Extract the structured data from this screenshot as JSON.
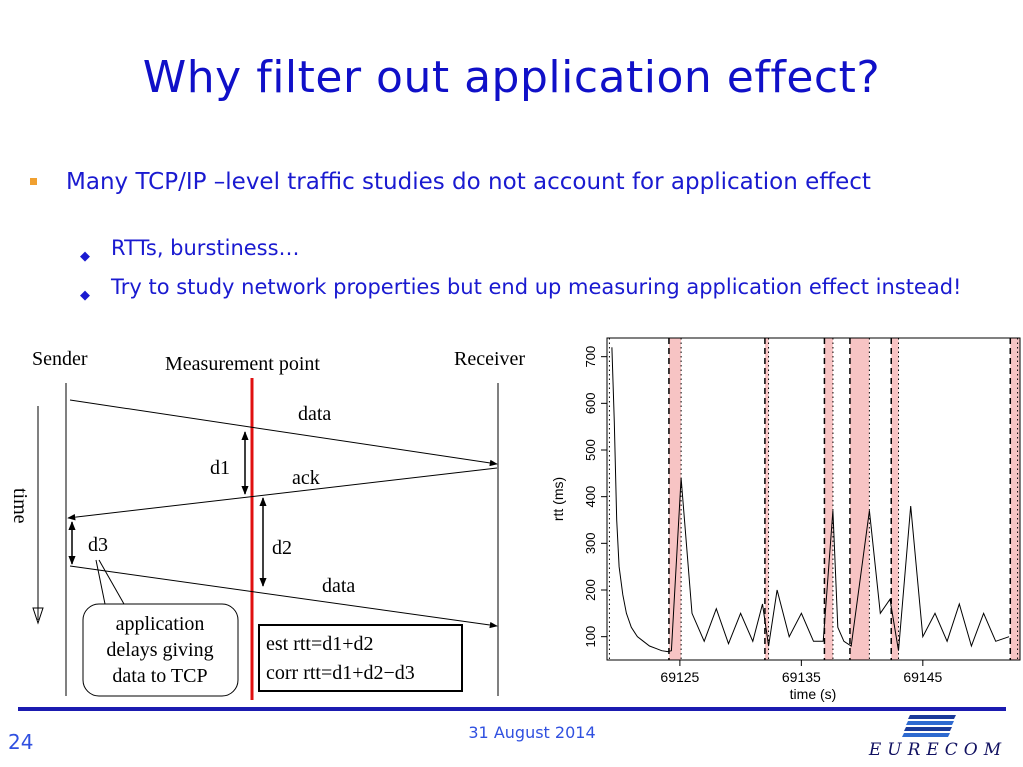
{
  "slide": {
    "title": "Why filter out application effect?",
    "bullets": [
      {
        "text": "Many TCP/IP –level traffic studies do not account for application effect",
        "subbullets": [
          "RTTs, burstiness…",
          "Try to study network properties but end up measuring application effect instead!"
        ]
      }
    ]
  },
  "diagram": {
    "sender": "Sender",
    "measurement_point": "Measurement point",
    "receiver": "Receiver",
    "time": "time",
    "data1": "data",
    "ack": "ack",
    "data2": "data",
    "d1": "d1",
    "d2": "d2",
    "d3": "d3",
    "callout": [
      "application",
      "delays giving",
      "data to TCP"
    ],
    "formula1": "est rtt=d1+d2",
    "formula2": "corr rtt=d1+d2−d3"
  },
  "chart_data": {
    "type": "line",
    "xlabel": "time (s)",
    "ylabel": "rtt (ms)",
    "x_ticks": [
      69125,
      69135,
      69145
    ],
    "y_ticks": [
      100,
      200,
      300,
      400,
      500,
      600,
      700
    ],
    "xlim": [
      69119,
      69153
    ],
    "ylim": [
      50,
      740
    ],
    "shaded_intervals": [
      [
        69124.1,
        69125.1
      ],
      [
        69132.0,
        69132.3
      ],
      [
        69136.9,
        69137.6
      ],
      [
        69139.0,
        69140.6
      ],
      [
        69142.4,
        69143.0
      ],
      [
        69152.2,
        69153.0
      ]
    ],
    "dashed_lines": [
      69124.1,
      69132.0,
      69136.9,
      69139.0,
      69142.4,
      69152.2
    ],
    "dotted_lines": [
      69119.2,
      69125.1,
      69132.3,
      69137.6,
      69140.6,
      69143.0,
      69152.8
    ],
    "series": [
      {
        "x": [
          69119.4,
          69119.6,
          69119.8,
          69120.0,
          69120.3,
          69120.6,
          69121.0,
          69121.5,
          69122.0,
          69122.5,
          69123.0,
          69123.5,
          69124.0,
          69124.3,
          69125.1,
          69126.0,
          69127.0,
          69128.0,
          69129.0,
          69130.0,
          69131.0,
          69131.8,
          69132.3,
          69133.0,
          69134.0,
          69135.0,
          69136.0,
          69136.8,
          69137.6,
          69138.0,
          69138.5,
          69139.1,
          69140.6,
          69141.5,
          69142.3,
          69143.0,
          69144.0,
          69145.0,
          69146.0,
          69147.0,
          69148.0,
          69149.0,
          69150.0,
          69151.0,
          69152.1
        ],
        "y": [
          720,
          560,
          350,
          250,
          190,
          150,
          120,
          100,
          90,
          80,
          75,
          70,
          68,
          70,
          440,
          150,
          90,
          160,
          85,
          150,
          90,
          170,
          80,
          200,
          100,
          150,
          90,
          90,
          370,
          120,
          90,
          80,
          370,
          150,
          180,
          70,
          380,
          100,
          150,
          90,
          170,
          80,
          150,
          90,
          100
        ]
      }
    ]
  },
  "footer": {
    "page": "24",
    "date": "31 August 2014",
    "logo": "EURECOM"
  }
}
